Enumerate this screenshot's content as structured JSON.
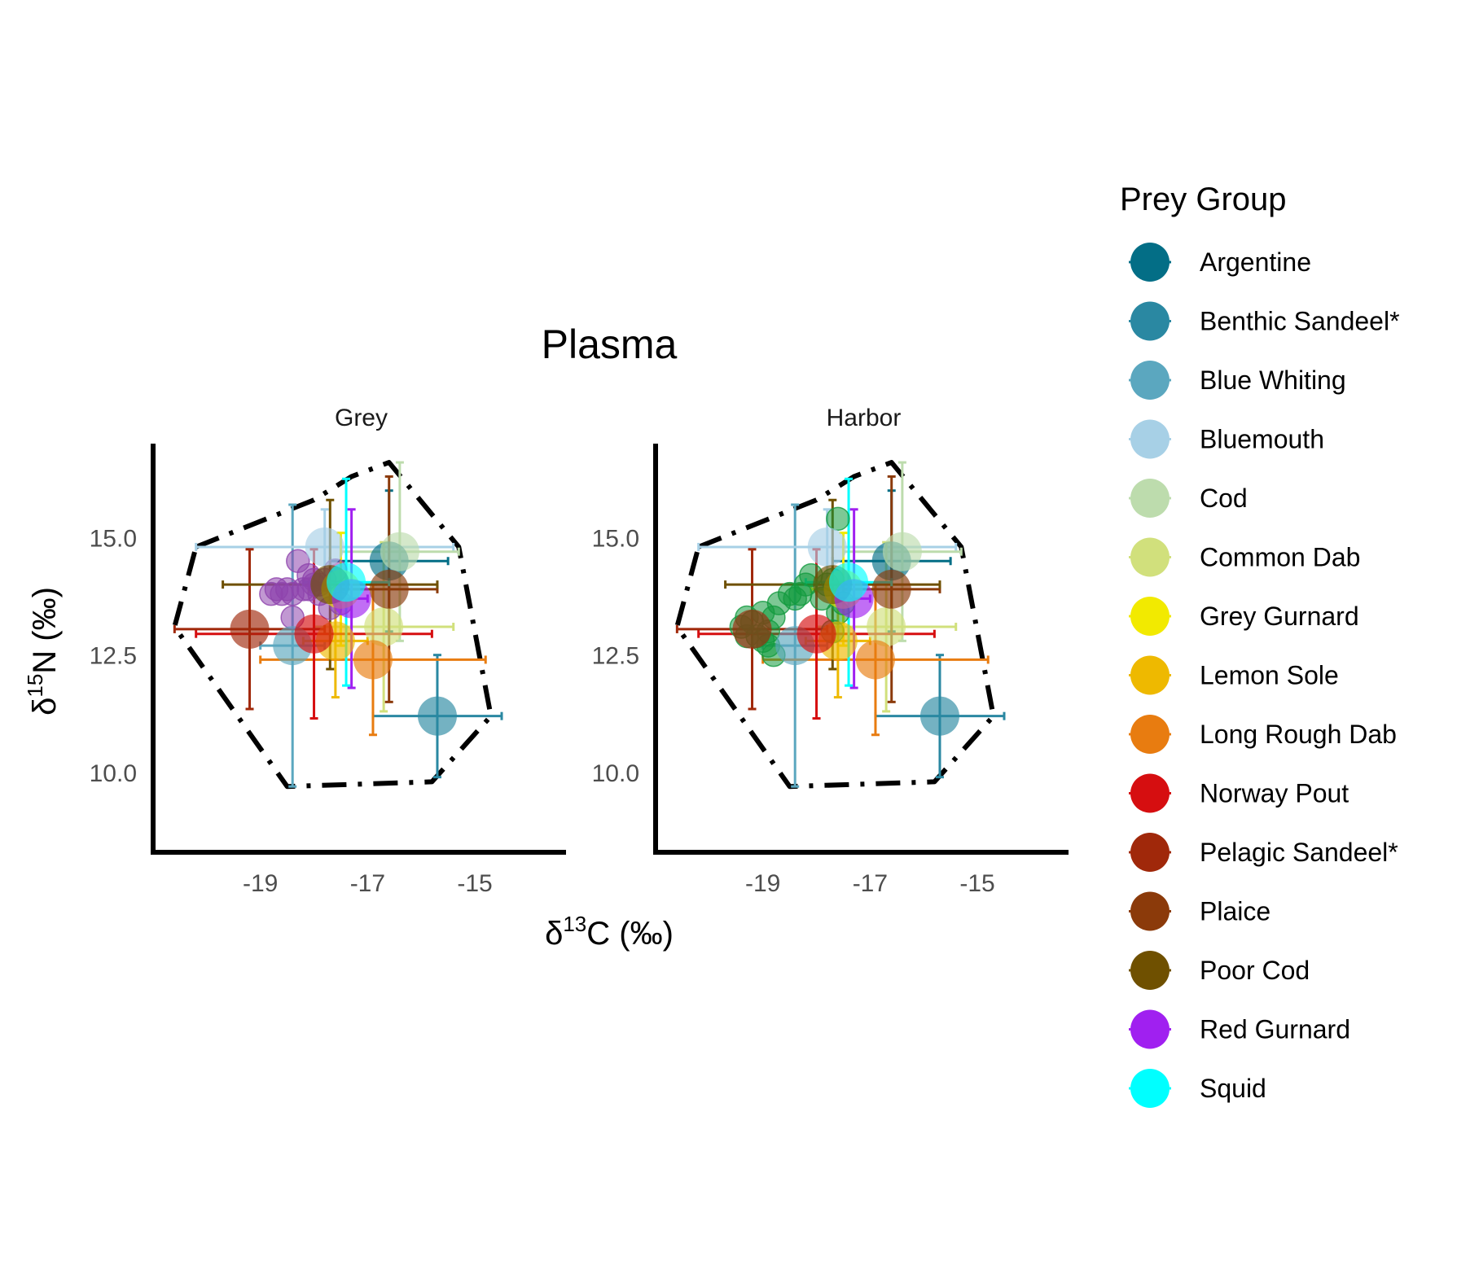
{
  "chart_data": {
    "type": "scatter",
    "title": "Plasma",
    "xlabel": "δ13C (‰)",
    "ylabel": "δ15N (‰)",
    "xlim": [
      -21.0,
      -13.3
    ],
    "ylim": [
      8.3,
      17.0
    ],
    "x_ticks": [
      -19,
      -17,
      -15
    ],
    "x_tick_labels": [
      "-19",
      "-17",
      "-15"
    ],
    "y_ticks": [
      10.0,
      12.5,
      15.0
    ],
    "y_tick_labels": [
      "10.0",
      "12.5",
      "15.0"
    ],
    "legend": {
      "title": "Prey Group",
      "placement": "right"
    },
    "hull": [
      [
        -20.2,
        14.8
      ],
      [
        -18.0,
        15.8
      ],
      [
        -17.3,
        16.3
      ],
      [
        -16.6,
        16.6
      ],
      [
        -15.3,
        14.8
      ],
      [
        -14.7,
        11.2
      ],
      [
        -15.8,
        9.8
      ],
      [
        -18.5,
        9.7
      ],
      [
        -20.6,
        13.1
      ]
    ],
    "prey": [
      {
        "name": "Argentine",
        "color": "#036e86",
        "x": -16.6,
        "y": 14.5,
        "xerr": 1.1,
        "yerr": 1.5
      },
      {
        "name": "Benthic Sandeel*",
        "color": "#2a88a2",
        "x": -15.7,
        "y": 11.2,
        "xerr": 1.2,
        "yerr": 1.3
      },
      {
        "name": "Blue Whiting",
        "color": "#5ba7bf",
        "x": -18.4,
        "y": 12.7,
        "xerr": 0.6,
        "yerr": 3.0
      },
      {
        "name": "Bluemouth",
        "color": "#a7d0e6",
        "x": -17.8,
        "y": 14.8,
        "xerr": 2.4,
        "yerr": 0.8
      },
      {
        "name": "Cod",
        "color": "#bddcad",
        "x": -16.4,
        "y": 14.7,
        "xerr": 1.1,
        "yerr": 1.9
      },
      {
        "name": "Common Dab",
        "color": "#d1e07c",
        "x": -16.7,
        "y": 13.1,
        "xerr": 1.3,
        "yerr": 1.8
      },
      {
        "name": "Grey Gurnard",
        "color": "#f2ea00",
        "x": -17.5,
        "y": 13.9,
        "xerr": 0.6,
        "yerr": 1.2
      },
      {
        "name": "Lemon Sole",
        "color": "#eeb900",
        "x": -17.6,
        "y": 12.8,
        "xerr": 0.6,
        "yerr": 1.2
      },
      {
        "name": "Long Rough Dab",
        "color": "#e87c10",
        "x": -16.9,
        "y": 12.4,
        "xerr": 2.1,
        "yerr": 1.6
      },
      {
        "name": "Norway Pout",
        "color": "#d60e10",
        "x": -18.0,
        "y": 12.95,
        "xerr": 2.2,
        "yerr": 1.8
      },
      {
        "name": "Pelagic Sandeel*",
        "color": "#a0280a",
        "x": -19.2,
        "y": 13.05,
        "xerr": 1.4,
        "yerr": 1.7
      },
      {
        "name": "Plaice",
        "color": "#8b3a0a",
        "x": -16.6,
        "y": 13.9,
        "xerr": 0.9,
        "yerr": 2.4
      },
      {
        "name": "Poor Cod",
        "color": "#6f5000",
        "x": -17.7,
        "y": 14.0,
        "xerr": 2.0,
        "yerr": 1.8
      },
      {
        "name": "Red Gurnard",
        "color": "#a020f0",
        "x": -17.3,
        "y": 13.7,
        "xerr": 0.3,
        "yerr": 1.9
      },
      {
        "name": "Squid",
        "color": "#00ffff",
        "x": -17.4,
        "y": 14.05,
        "xerr": 0.8,
        "yerr": 2.2
      }
    ],
    "panels": [
      {
        "label": "Grey",
        "consumer_color": "#8e44ad",
        "consumers": [
          [
            -18.8,
            13.8
          ],
          [
            -18.7,
            13.9
          ],
          [
            -18.6,
            13.8
          ],
          [
            -18.5,
            13.9
          ],
          [
            -18.4,
            13.8
          ],
          [
            -18.3,
            14.5
          ],
          [
            -18.2,
            13.9
          ],
          [
            -18.1,
            14.2
          ],
          [
            -18.0,
            14.0
          ],
          [
            -17.9,
            13.8
          ],
          [
            -17.8,
            14.1
          ],
          [
            -18.0,
            14.1
          ],
          [
            -17.6,
            14.3
          ],
          [
            -17.7,
            13.5
          ],
          [
            -17.5,
            13.6
          ],
          [
            -18.4,
            13.3
          ],
          [
            -18.1,
            13.9
          ],
          [
            -17.9,
            14.0
          ]
        ]
      },
      {
        "label": "Harbor",
        "consumer_color": "#139a3e",
        "consumers": [
          [
            -17.6,
            15.4
          ],
          [
            -19.4,
            13.1
          ],
          [
            -19.3,
            13.3
          ],
          [
            -19.2,
            13.2
          ],
          [
            -19.1,
            12.9
          ],
          [
            -19.0,
            13.4
          ],
          [
            -18.9,
            13.0
          ],
          [
            -18.8,
            13.3
          ],
          [
            -18.7,
            13.6
          ],
          [
            -18.5,
            13.8
          ],
          [
            -18.4,
            13.7
          ],
          [
            -18.3,
            13.8
          ],
          [
            -18.2,
            14.0
          ],
          [
            -18.1,
            14.2
          ],
          [
            -17.9,
            13.7
          ],
          [
            -17.8,
            14.0
          ],
          [
            -17.7,
            14.1
          ],
          [
            -17.6,
            13.4
          ],
          [
            -17.5,
            13.6
          ],
          [
            -17.7,
            13.0
          ],
          [
            -18.9,
            12.7
          ],
          [
            -18.8,
            12.5
          ],
          [
            -19.0,
            12.8
          ],
          [
            -19.3,
            12.9
          ]
        ]
      }
    ]
  }
}
